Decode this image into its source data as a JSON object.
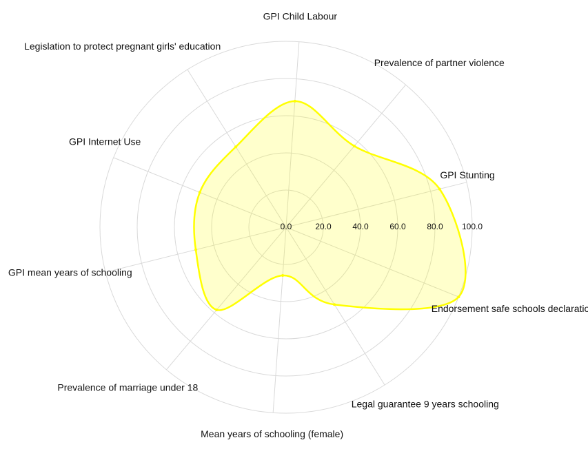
{
  "chart_data": {
    "type": "radar",
    "categories": [
      "GPI Child Labour",
      "Prevalence of partner violence",
      "GPI Stunting",
      "Endorsement safe schools declaration",
      "Legal guarantee 9 years schooling",
      "Mean years of schooling (female)",
      "Prevalence of marriage under 18",
      "GPI mean years of schooling",
      "GPI Internet Use",
      "Legislation to protect pregnant girls' education"
    ],
    "series": [
      {
        "name": null,
        "color": "#ffff00",
        "values": [
          68,
          57,
          85,
          100,
          49,
          26,
          58,
          50,
          50,
          51
        ]
      }
    ],
    "rlim": [
      0,
      100
    ],
    "rticks": [
      {
        "value": 0,
        "label": "0.0"
      },
      {
        "value": 20,
        "label": "20.0"
      },
      {
        "value": 40,
        "label": "40.0"
      },
      {
        "value": 60,
        "label": "60.0"
      },
      {
        "value": 80,
        "label": "80.0"
      },
      {
        "value": 100,
        "label": "100.0"
      }
    ],
    "grid": true
  }
}
